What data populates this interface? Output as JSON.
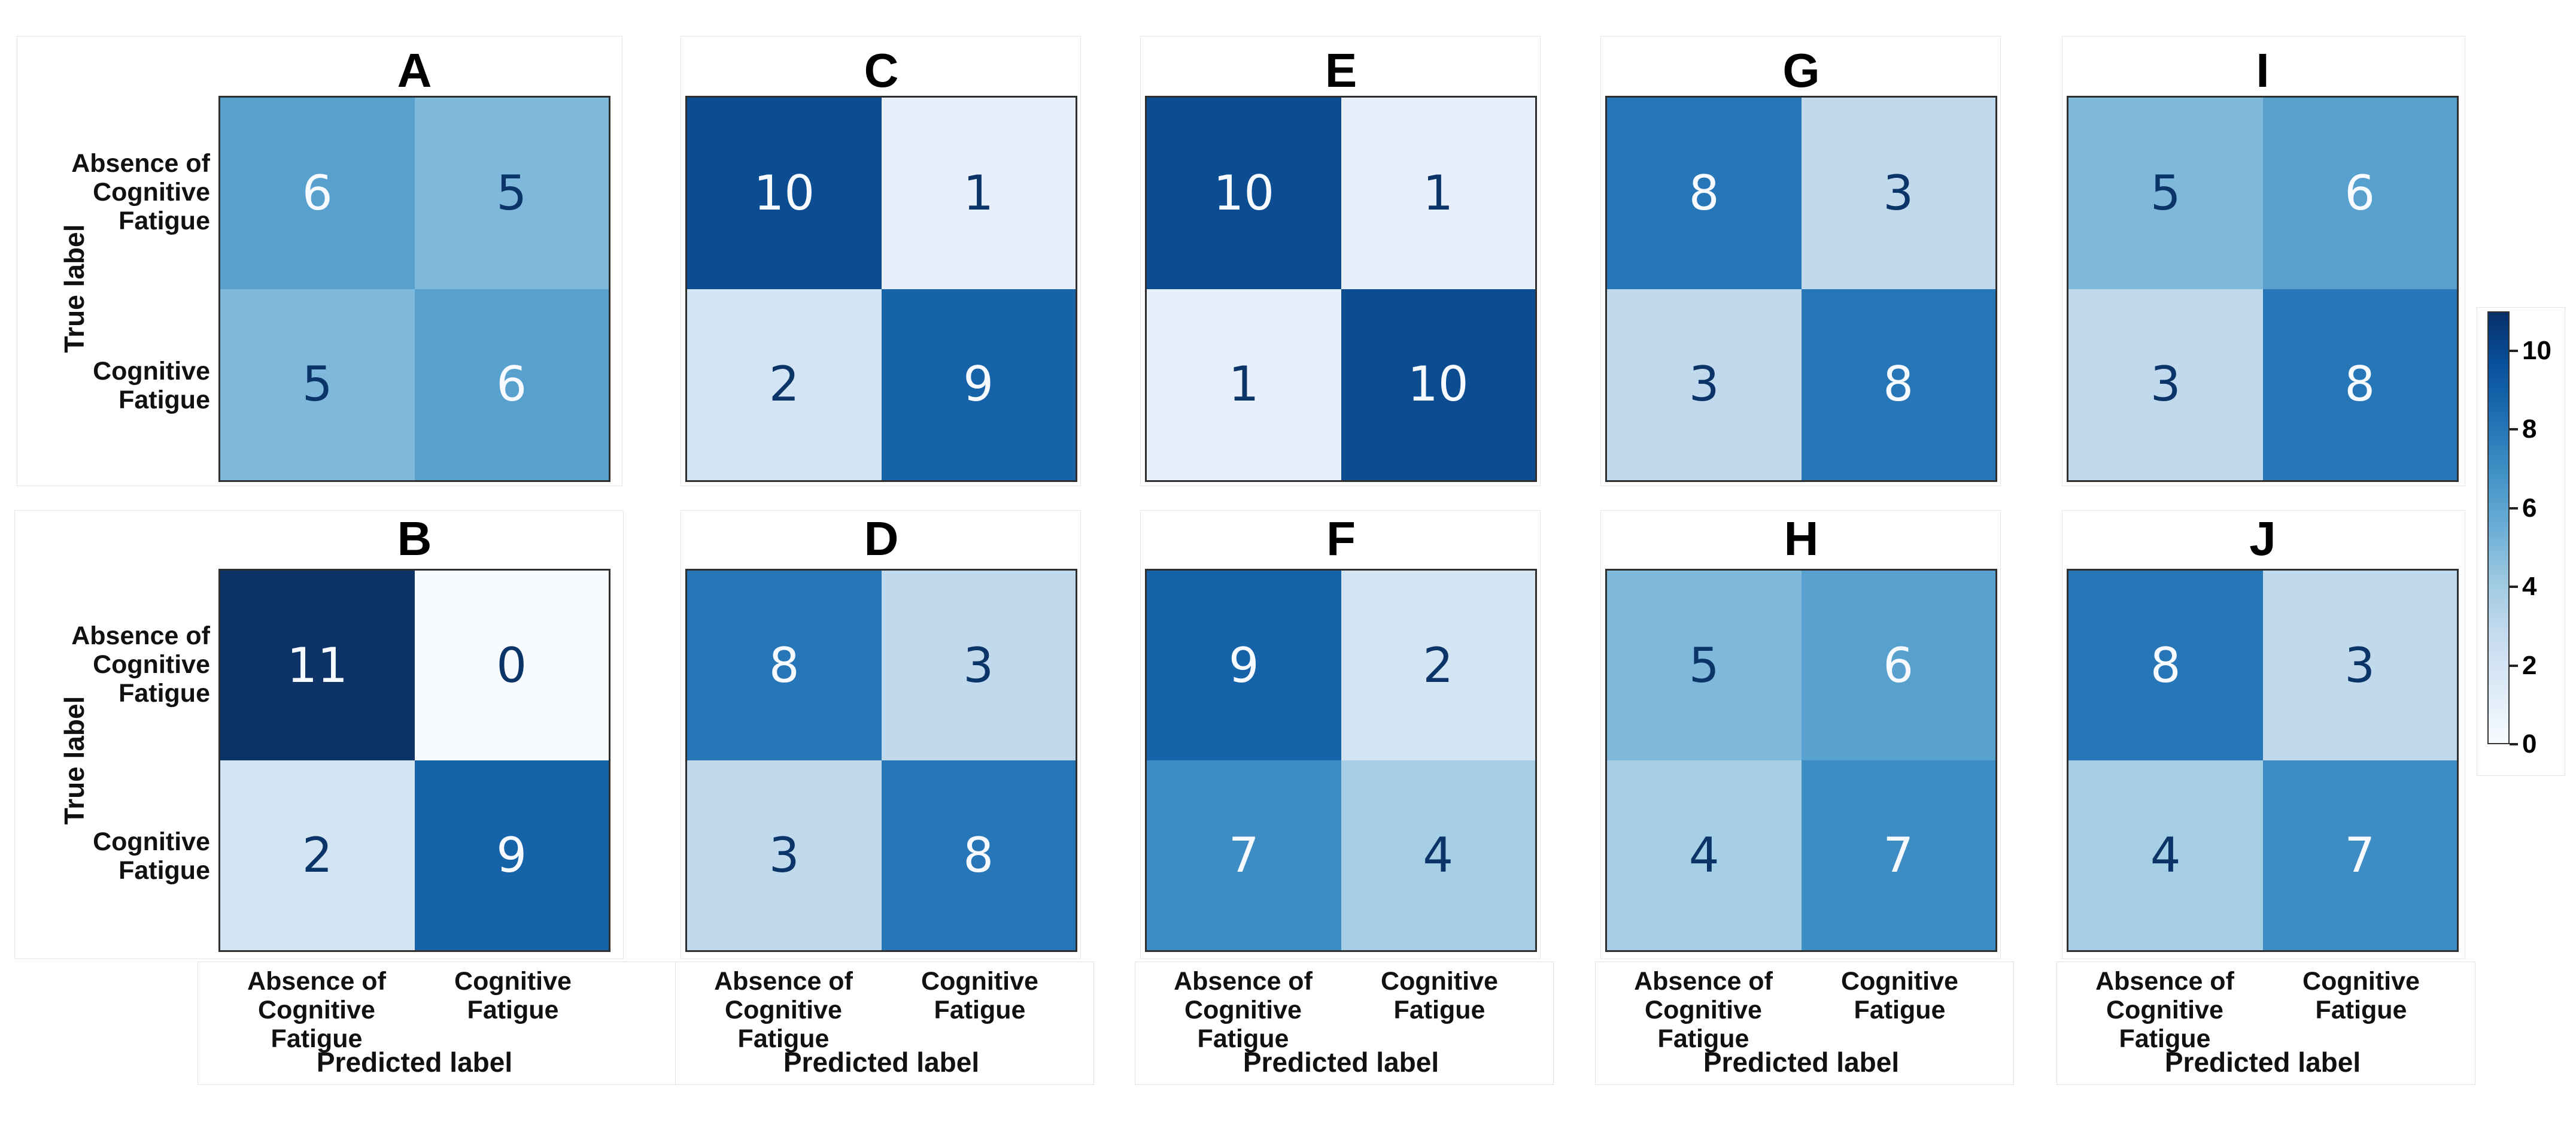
{
  "figure": {
    "type": "confusion-matrix-grid",
    "background": "#ffffff",
    "rows": 2,
    "cols": 5,
    "subplot_order": [
      "A",
      "C",
      "E",
      "G",
      "I",
      "B",
      "D",
      "F",
      "H",
      "J"
    ]
  },
  "chart_data": [
    {
      "type": "heatmap",
      "title": "A",
      "categories": [
        "Absence of\nCognitive\nFatigue",
        "Cognitive\nFatigue"
      ],
      "values": [
        [
          6,
          5
        ],
        [
          5,
          6
        ]
      ],
      "ylabel": "True label",
      "vmin": 0,
      "vmax": 11,
      "colormap": "Blues"
    },
    {
      "type": "heatmap",
      "title": "C",
      "categories": [
        "Absence of\nCognitive\nFatigue",
        "Cognitive\nFatigue"
      ],
      "values": [
        [
          10,
          1
        ],
        [
          2,
          9
        ]
      ],
      "vmin": 0,
      "vmax": 11,
      "colormap": "Blues"
    },
    {
      "type": "heatmap",
      "title": "E",
      "categories": [
        "Absence of\nCognitive\nFatigue",
        "Cognitive\nFatigue"
      ],
      "values": [
        [
          10,
          1
        ],
        [
          1,
          10
        ]
      ],
      "vmin": 0,
      "vmax": 11,
      "colormap": "Blues"
    },
    {
      "type": "heatmap",
      "title": "G",
      "categories": [
        "Absence of\nCognitive\nFatigue",
        "Cognitive\nFatigue"
      ],
      "values": [
        [
          8,
          3
        ],
        [
          3,
          8
        ]
      ],
      "vmin": 0,
      "vmax": 11,
      "colormap": "Blues"
    },
    {
      "type": "heatmap",
      "title": "I",
      "categories": [
        "Absence of\nCognitive\nFatigue",
        "Cognitive\nFatigue"
      ],
      "values": [
        [
          5,
          6
        ],
        [
          3,
          8
        ]
      ],
      "vmin": 0,
      "vmax": 11,
      "colormap": "Blues"
    },
    {
      "type": "heatmap",
      "title": "B",
      "categories": [
        "Absence of\nCognitive\nFatigue",
        "Cognitive\nFatigue"
      ],
      "values": [
        [
          11,
          0
        ],
        [
          2,
          9
        ]
      ],
      "ylabel": "True label",
      "xlabel": "Predicted label",
      "vmin": 0,
      "vmax": 11,
      "colormap": "Blues"
    },
    {
      "type": "heatmap",
      "title": "D",
      "categories": [
        "Absence of\nCognitive\nFatigue",
        "Cognitive\nFatigue"
      ],
      "values": [
        [
          8,
          3
        ],
        [
          3,
          8
        ]
      ],
      "xlabel": "Predicted label",
      "vmin": 0,
      "vmax": 11,
      "colormap": "Blues"
    },
    {
      "type": "heatmap",
      "title": "F",
      "categories": [
        "Absence of\nCognitive\nFatigue",
        "Cognitive\nFatigue"
      ],
      "values": [
        [
          9,
          2
        ],
        [
          7,
          4
        ]
      ],
      "xlabel": "Predicted label",
      "vmin": 0,
      "vmax": 11,
      "colormap": "Blues"
    },
    {
      "type": "heatmap",
      "title": "H",
      "categories": [
        "Absence of\nCognitive\nFatigue",
        "Cognitive\nFatigue"
      ],
      "values": [
        [
          5,
          6
        ],
        [
          4,
          7
        ]
      ],
      "xlabel": "Predicted label",
      "vmin": 0,
      "vmax": 11,
      "colormap": "Blues"
    },
    {
      "type": "heatmap",
      "title": "J",
      "categories": [
        "Absence of\nCognitive\nFatigue",
        "Cognitive\nFatigue"
      ],
      "values": [
        [
          8,
          3
        ],
        [
          4,
          7
        ]
      ],
      "xlabel": "Predicted label",
      "vmin": 0,
      "vmax": 11,
      "colormap": "Blues"
    }
  ],
  "colorbar": {
    "ticks": [
      0,
      2,
      4,
      6,
      8,
      10
    ],
    "vmin": 0,
    "vmax": 11,
    "gradient": [
      "#f7fbff",
      "#deebf7",
      "#c6dbef",
      "#9ecae1",
      "#6baed6",
      "#4292c6",
      "#2171b5",
      "#08519c",
      "#08306b"
    ]
  },
  "colormap": {
    "0": "#f7fbff",
    "1": "#e7f0fa",
    "2": "#d3e4f3",
    "3": "#c1d9ed",
    "4": "#a6cee4",
    "5": "#7eb8da",
    "6": "#58a1cf",
    "7": "#3d8dc4",
    "8": "#2676b8",
    "9": "#1763aa",
    "10": "#0c4d92",
    "11": "#0d3367"
  },
  "colors": {
    "cell_text_light": "#f7fbff",
    "cell_text_dark": "#0b3568",
    "text_threshold": 5.5,
    "matrix_border": "#2f2f2f",
    "panel_border": "#e4e4e4",
    "label_color": "#111111"
  }
}
